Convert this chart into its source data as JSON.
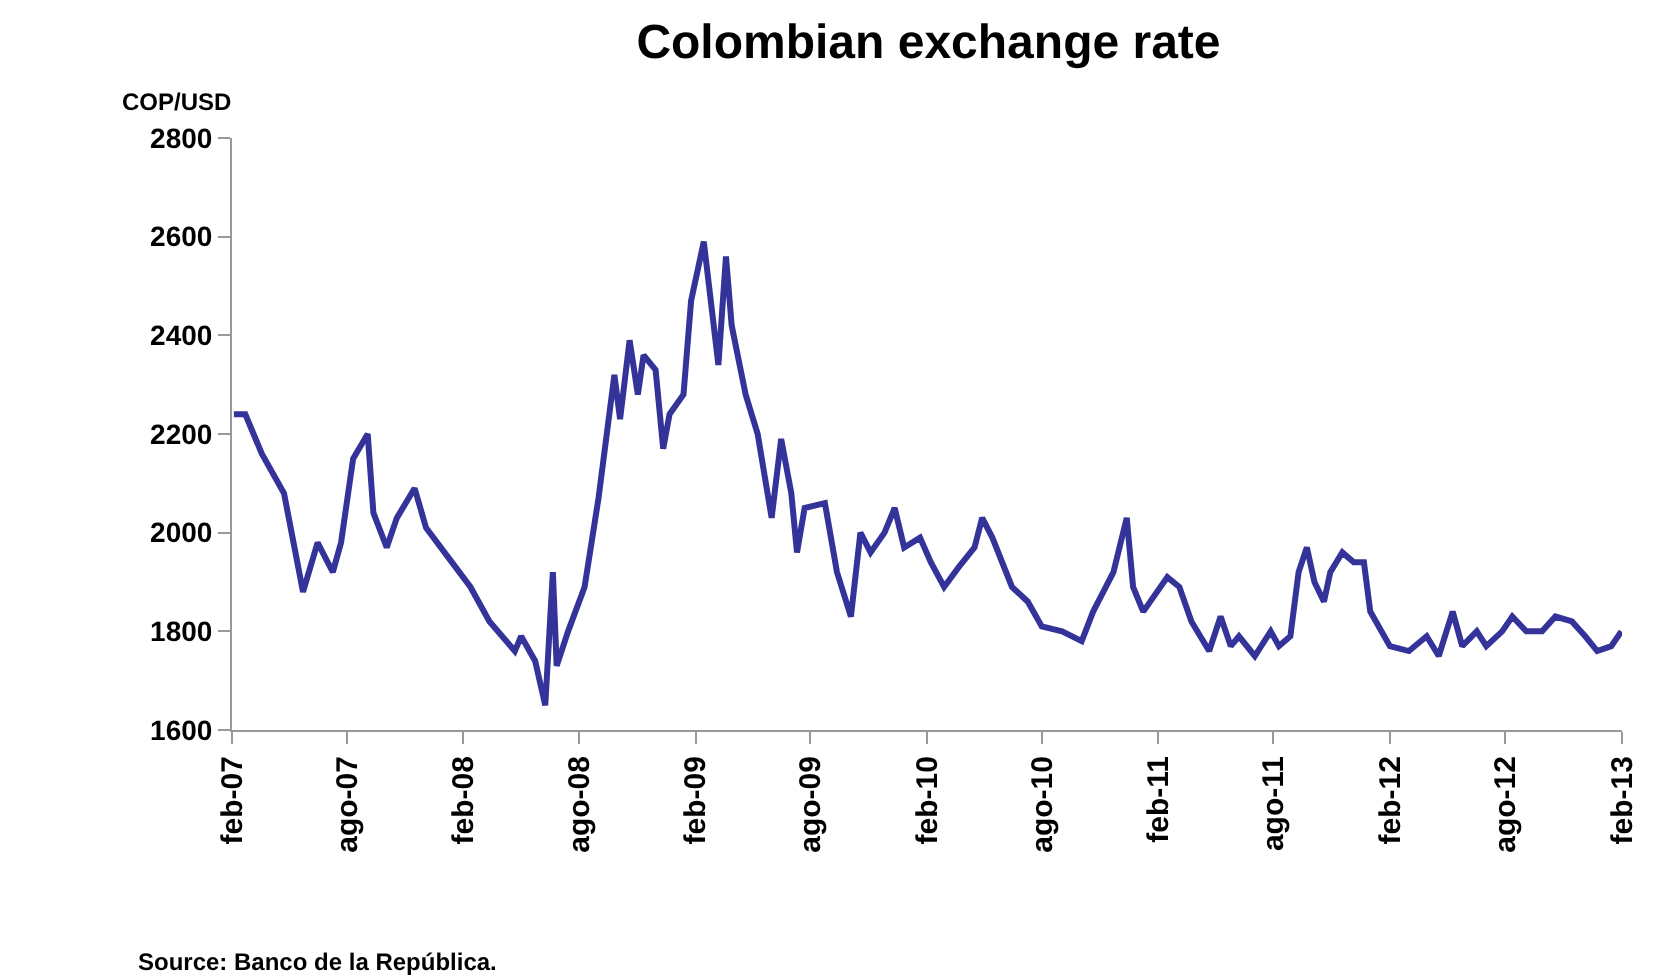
{
  "chart_data": {
    "type": "line",
    "title": "Colombian exchange rate",
    "ylabel": "COP/USD",
    "annotations": [
      "Source: Banco de la República."
    ],
    "x": [
      "2007-02-04",
      "2007-02-22",
      "2007-03-20",
      "2007-04-24",
      "2007-05-24",
      "2007-06-16",
      "2007-07-10",
      "2007-07-23",
      "2007-08-11",
      "2007-09-03",
      "2007-09-12",
      "2007-10-03",
      "2007-10-19",
      "2007-11-16",
      "2007-12-04",
      "2008-01-08",
      "2008-02-12",
      "2008-03-13",
      "2008-04-22",
      "2008-05-02",
      "2008-05-24",
      "2008-06-09",
      "2008-06-21",
      "2008-06-27",
      "2008-07-15",
      "2008-08-10",
      "2008-09-01",
      "2008-09-26",
      "2008-10-05",
      "2008-10-20",
      "2008-11-02",
      "2008-11-11",
      "2008-11-30",
      "2008-12-12",
      "2008-12-22",
      "2009-01-13",
      "2009-01-25",
      "2009-02-14",
      "2009-03-09",
      "2009-03-21",
      "2009-03-30",
      "2009-04-21",
      "2009-05-10",
      "2009-06-01",
      "2009-06-16",
      "2009-07-02",
      "2009-07-11",
      "2009-07-23",
      "2009-08-24",
      "2009-09-12",
      "2009-10-04",
      "2009-10-19",
      "2009-11-04",
      "2009-11-26",
      "2009-12-12",
      "2009-12-27",
      "2010-01-21",
      "2010-02-07",
      "2010-02-28",
      "2010-03-23",
      "2010-04-17",
      "2010-04-29",
      "2010-05-15",
      "2010-06-15",
      "2010-07-10",
      "2010-08-01",
      "2010-09-02",
      "2010-10-03",
      "2010-10-21",
      "2010-11-22",
      "2010-12-13",
      "2010-12-23",
      "2011-01-08",
      "2011-02-15",
      "2011-03-06",
      "2011-03-25",
      "2011-04-22",
      "2011-05-10",
      "2011-05-26",
      "2011-06-08",
      "2011-07-03",
      "2011-07-28",
      "2011-08-10",
      "2011-08-28",
      "2011-09-10",
      "2011-09-23",
      "2011-10-05",
      "2011-10-20",
      "2011-10-30",
      "2011-11-18",
      "2011-12-06",
      "2011-12-22",
      "2012-01-01",
      "2012-02-01",
      "2012-03-02",
      "2012-03-30",
      "2012-04-18",
      "2012-05-10",
      "2012-05-25",
      "2012-06-17",
      "2012-07-02",
      "2012-07-27",
      "2012-08-12",
      "2012-09-03",
      "2012-09-28",
      "2012-10-19",
      "2012-11-14",
      "2012-12-05",
      "2012-12-24",
      "2013-01-15",
      "2013-01-31"
    ],
    "series": [
      {
        "color": "#333399",
        "values": [
          2240,
          2240,
          2160,
          2080,
          1880,
          1980,
          1920,
          1980,
          2150,
          2200,
          2040,
          1970,
          2030,
          2090,
          2010,
          1950,
          1890,
          1820,
          1760,
          1790,
          1740,
          1650,
          1920,
          1730,
          1800,
          1890,
          2070,
          2320,
          2230,
          2390,
          2280,
          2360,
          2330,
          2170,
          2240,
          2280,
          2470,
          2590,
          2340,
          2560,
          2420,
          2280,
          2200,
          2030,
          2190,
          2080,
          1960,
          2050,
          2060,
          1920,
          1830,
          2000,
          1960,
          2000,
          2050,
          1970,
          1990,
          1940,
          1890,
          1930,
          1970,
          2030,
          1990,
          1890,
          1860,
          1810,
          1800,
          1780,
          1840,
          1920,
          2030,
          1890,
          1840,
          1910,
          1890,
          1820,
          1760,
          1830,
          1770,
          1790,
          1750,
          1800,
          1770,
          1790,
          1920,
          1970,
          1900,
          1860,
          1920,
          1960,
          1940,
          1940,
          1840,
          1770,
          1760,
          1790,
          1750,
          1840,
          1770,
          1800,
          1770,
          1800,
          1830,
          1800,
          1800,
          1830,
          1820,
          1790,
          1760,
          1770,
          1800
        ]
      }
    ],
    "xlim": [
      "2007-02-01",
      "2013-02-01"
    ],
    "xticks": [
      {
        "value": "2007-02-01",
        "label": "feb-07"
      },
      {
        "value": "2007-08-01",
        "label": "ago-07"
      },
      {
        "value": "2008-02-01",
        "label": "feb-08"
      },
      {
        "value": "2008-08-01",
        "label": "ago-08"
      },
      {
        "value": "2009-02-01",
        "label": "feb-09"
      },
      {
        "value": "2009-08-01",
        "label": "ago-09"
      },
      {
        "value": "2010-02-01",
        "label": "feb-10"
      },
      {
        "value": "2010-08-01",
        "label": "ago-10"
      },
      {
        "value": "2011-02-01",
        "label": "feb-11"
      },
      {
        "value": "2011-08-01",
        "label": "ago-11"
      },
      {
        "value": "2012-02-01",
        "label": "feb-12"
      },
      {
        "value": "2012-08-01",
        "label": "ago-12"
      },
      {
        "value": "2013-02-01",
        "label": "feb-13"
      }
    ],
    "ylim": [
      1600,
      2800
    ],
    "yticks": [
      1600,
      1800,
      2000,
      2200,
      2400,
      2600,
      2800
    ],
    "marker": "none",
    "line_style": "solid"
  }
}
